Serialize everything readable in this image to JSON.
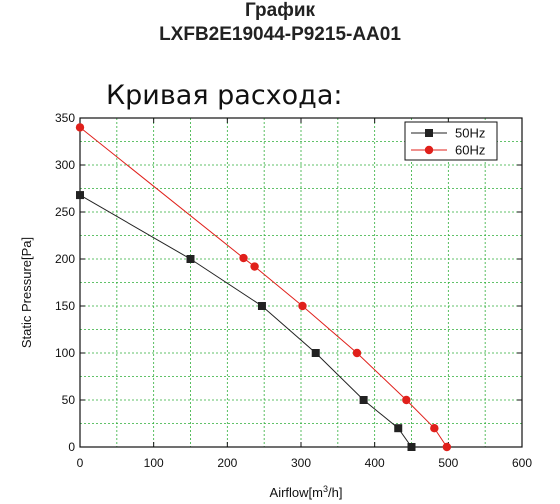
{
  "header": {
    "title_line1": "График",
    "title_line2": "LXFB2E19044-P9215-AA01",
    "subtitle": "Кривая расхода:"
  },
  "chart_data": {
    "type": "line",
    "xlabel_prefix": "Airflow[m",
    "xlabel_sup": "3",
    "xlabel_suffix": "/h]",
    "ylabel": "Static Pressure[Pa]",
    "xlim": [
      0,
      600
    ],
    "ylim": [
      0,
      350
    ],
    "xticks": [
      0,
      100,
      200,
      300,
      400,
      500,
      600
    ],
    "yticks": [
      0,
      50,
      100,
      150,
      200,
      250,
      300,
      350
    ],
    "grid": true,
    "legend_position": "top-right",
    "series": [
      {
        "name": "50Hz",
        "color": "#222222",
        "marker": "square",
        "x": [
          0,
          150,
          247,
          320,
          385,
          432,
          450
        ],
        "y": [
          268,
          200,
          150,
          100,
          50,
          20,
          0
        ]
      },
      {
        "name": "60Hz",
        "color": "#e0201b",
        "marker": "circle",
        "x": [
          0,
          222,
          237,
          302,
          376,
          443,
          481,
          498
        ],
        "y": [
          340,
          201,
          192,
          150,
          100,
          50,
          20,
          0
        ]
      }
    ]
  }
}
